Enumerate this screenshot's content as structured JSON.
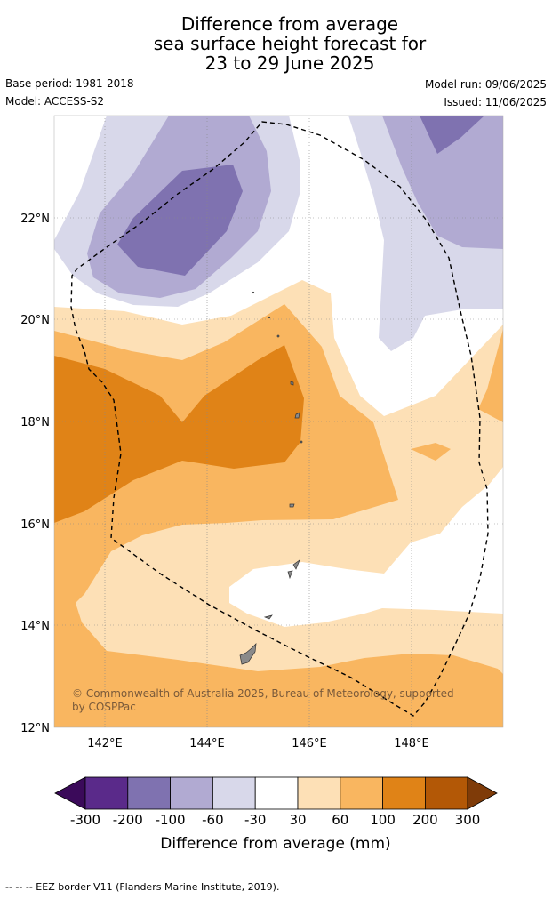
{
  "title": {
    "line1": "Difference from average",
    "line2": "sea surface height forecast for",
    "line3": "23 to 29 June 2025"
  },
  "meta": {
    "base_period": "Base period: 1981-2018",
    "model": "Model: ACCESS-S2",
    "model_run": "Model run: 09/06/2025",
    "issued": "Issued: 11/06/2025"
  },
  "map": {
    "lon_ticks": [
      "142°E",
      "144°E",
      "146°E",
      "148°E"
    ],
    "lat_ticks": [
      "22°N",
      "20°N",
      "18°N",
      "16°N",
      "14°N",
      "12°N"
    ],
    "copyright_line1": "© Commonwealth of Australia 2025, Bureau of Meteorology, supported",
    "copyright_line2": "by COSPPac"
  },
  "colorbar": {
    "title": "Difference from average (mm)",
    "labels": [
      "-300",
      "-200",
      "-100",
      "-60",
      "-30",
      "30",
      "60",
      "100",
      "200",
      "300"
    ],
    "colors": [
      "#3b0a5a",
      "#5a2a8a",
      "#7f72b0",
      "#b1aad2",
      "#d8d8ea",
      "#ffffff",
      "#fde0b6",
      "#f9b660",
      "#e08317",
      "#b35806",
      "#7f3b08"
    ]
  },
  "footnote": "--  --  -- EEZ border V11 (Flanders Marine Institute, 2019)."
}
